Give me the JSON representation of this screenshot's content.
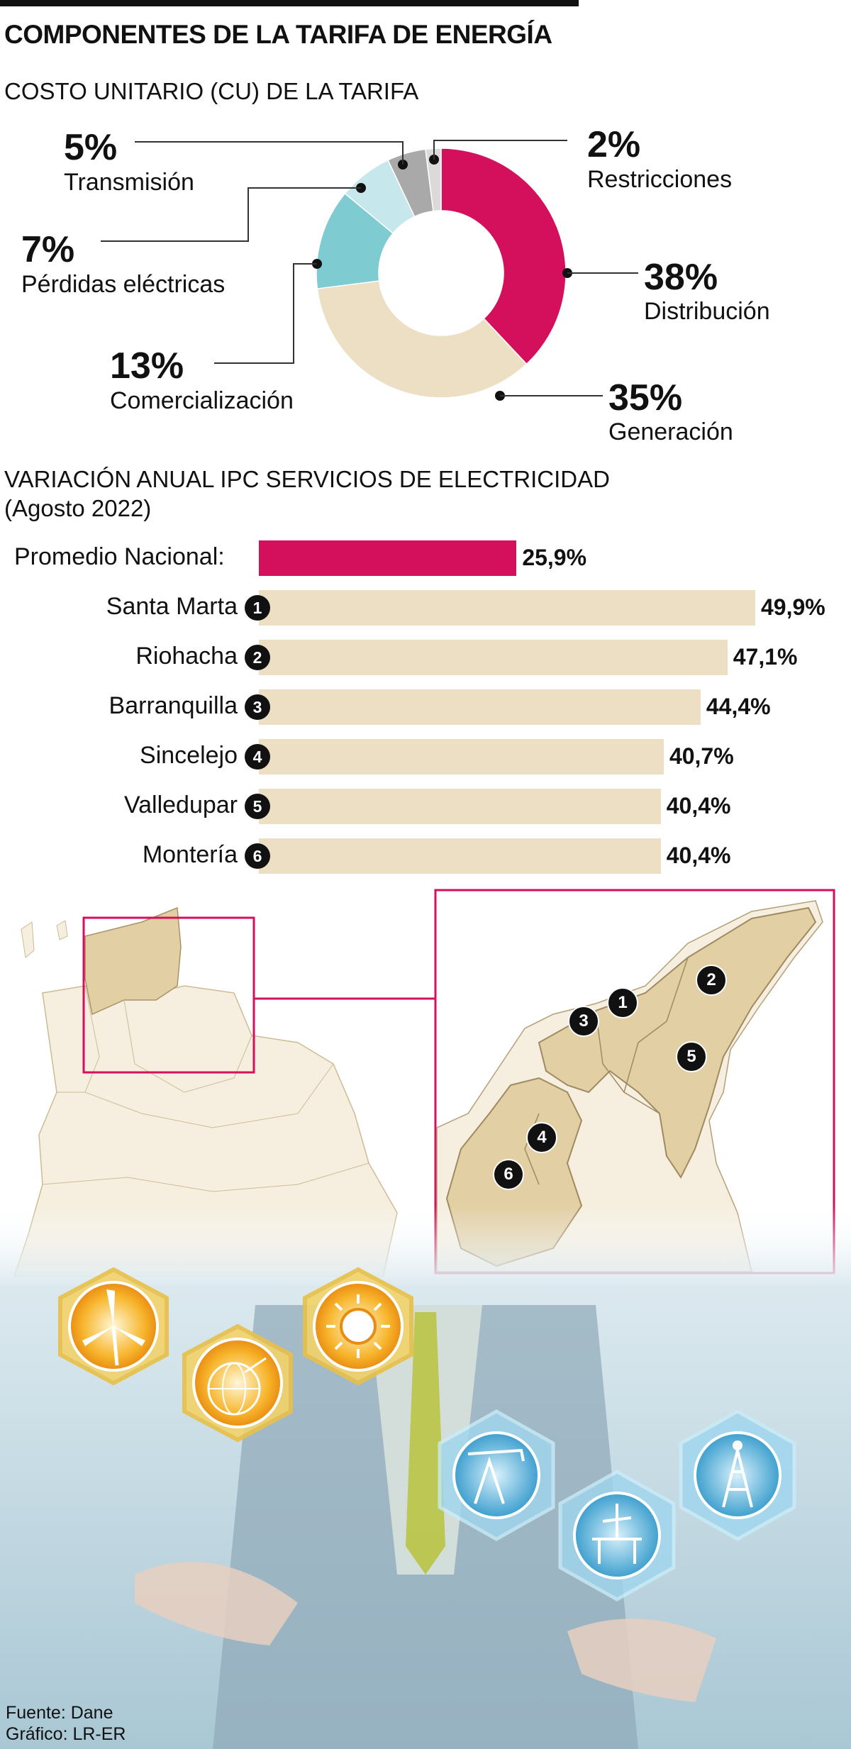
{
  "title": "COMPONENTES DE LA TARIFA DE ENERGÍA",
  "subtitle1": "COSTO UNITARIO (CU) DE LA TARIFA",
  "subtitle2_line1": "VARIACIÓN ANUAL IPC SERVICIOS DE ELECTRICIDAD",
  "subtitle2_line2": "(Agosto 2022)",
  "source": "Fuente: Dane",
  "credit": "Gráfico: LR-ER",
  "colors": {
    "accent": "#d4105c",
    "beige": "#ecdfc4",
    "teal": "#7ecbd2",
    "light_teal": "#c6e8ec",
    "gray": "#a9a9a9",
    "light_gray": "#dadada",
    "map_beige": "#e2cfa4",
    "map_light": "#f6efe0"
  },
  "chart_data": [
    {
      "type": "pie",
      "title": "COSTO UNITARIO (CU) DE LA TARIFA",
      "slices": [
        {
          "name": "Distribución",
          "value": 38,
          "label": "38%",
          "color": "#d4105c"
        },
        {
          "name": "Generación",
          "value": 35,
          "label": "35%",
          "color": "#ecdfc4"
        },
        {
          "name": "Comercialización",
          "value": 13,
          "label": "13%",
          "color": "#7ecbd2"
        },
        {
          "name": "Pérdidas eléctricas",
          "value": 7,
          "label": "7%",
          "color": "#c6e8ec"
        },
        {
          "name": "Transmisión",
          "value": 5,
          "label": "5%",
          "color": "#a9a9a9"
        },
        {
          "name": "Restricciones",
          "value": 2,
          "label": "2%",
          "color": "#dadada"
        }
      ]
    },
    {
      "type": "bar",
      "title": "VARIACIÓN ANUAL IPC SERVICIOS DE ELECTRICIDAD (Agosto 2022)",
      "categories": [
        "Promedio Nacional:",
        "Santa Marta",
        "Riohacha",
        "Barranquilla",
        "Sincelejo",
        "Valledupar",
        "Montería"
      ],
      "badges": [
        "",
        "1",
        "2",
        "3",
        "4",
        "5",
        "6"
      ],
      "values": [
        25.9,
        49.9,
        47.1,
        44.4,
        40.7,
        40.4,
        40.4
      ],
      "value_labels": [
        "25,9%",
        "49,9%",
        "47,1%",
        "44,4%",
        "40,7%",
        "40,4%",
        "40,4%"
      ]
    }
  ],
  "map_badges": [
    "1",
    "2",
    "3",
    "4",
    "5",
    "6"
  ],
  "icons": [
    "wind-turbine-icon",
    "globe-icon",
    "sun-icon",
    "oil-pump-icon",
    "offshore-platform-icon",
    "oil-derrick-icon"
  ]
}
